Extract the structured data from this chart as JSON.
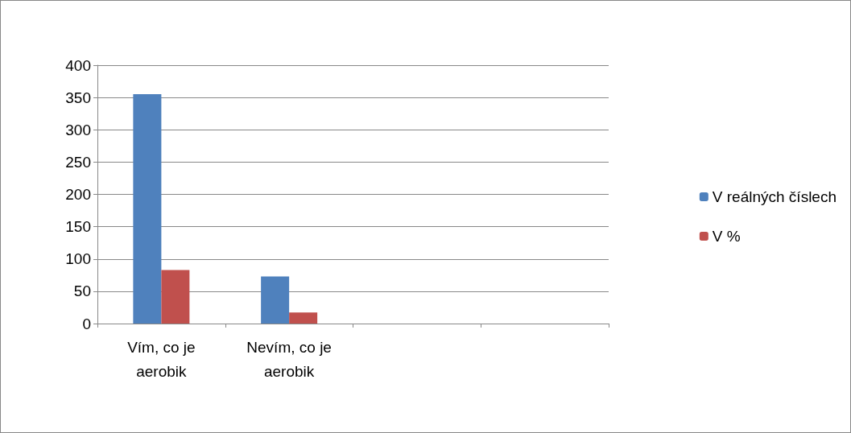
{
  "chart_data": {
    "type": "bar",
    "categories": [
      "Vím, co je aerobik",
      "Nevím, co je aerobik",
      null,
      null
    ],
    "series": [
      {
        "name": "V reálných číslech",
        "color": "#4f81bd",
        "values": [
          355,
          73,
          null,
          null
        ]
      },
      {
        "name": "V %",
        "color": "#c0504d",
        "values": [
          83,
          17,
          null,
          null
        ]
      }
    ],
    "ylim": [
      0,
      400
    ],
    "yticks": [
      0,
      50,
      100,
      150,
      200,
      250,
      300,
      350,
      400
    ],
    "grid": "y",
    "legend": "right"
  }
}
